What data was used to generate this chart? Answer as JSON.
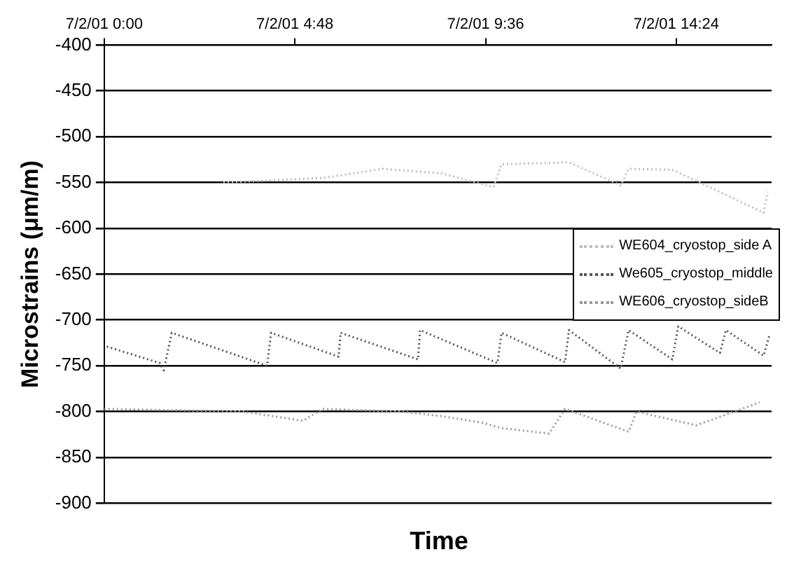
{
  "chart_data": {
    "type": "line",
    "xlabel": "Time",
    "ylabel": "Microstrains (μm/m)",
    "xlim": [
      "--07-02T00:00",
      "--07-02T16:48"
    ],
    "xticks": [
      {
        "value": "--07-02T00:00",
        "label": "7/2/01 0:00"
      },
      {
        "value": "--07-02T04:48",
        "label": "7/2/01 4:48"
      },
      {
        "value": "--07-02T09:36",
        "label": "7/2/01 9:36"
      },
      {
        "value": "--07-02T14:24",
        "label": "7/2/01 14:24"
      }
    ],
    "ylim": [
      -900,
      -400
    ],
    "yticks": [
      -900,
      -850,
      -800,
      -750,
      -700,
      -650,
      -600,
      -550,
      -500,
      -450,
      -400
    ],
    "grid": "y",
    "legend": "right",
    "marker": "none",
    "line_style": "dotted",
    "series": [
      {
        "name": "WE604_cryostop_side A",
        "color": "#bdbdbd",
        "x": [
          "--07-02T03:00",
          "--07-02T05:30",
          "--07-02T07:00",
          "--07-02T08:30",
          "--07-02T09:48",
          "--07-02T10:00",
          "--07-02T11:42",
          "--07-02T13:00",
          "--07-02T13:12",
          "--07-02T14:18",
          "--07-02T15:00",
          "--07-02T16:36",
          "--07-02T16:42"
        ],
        "values": [
          -550,
          -545,
          -535,
          -540,
          -555,
          -530,
          -528,
          -553,
          -535,
          -536,
          -550,
          -583,
          -560
        ]
      },
      {
        "name": "We605_cryostop_middle",
        "color": "#555555",
        "x": [
          "--07-02T00:04",
          "--07-02T01:24",
          "--07-02T01:30",
          "--07-02T01:42",
          "--07-02T04:06",
          "--07-02T04:12",
          "--07-02T05:54",
          "--07-02T05:57",
          "--07-02T07:54",
          "--07-02T07:57",
          "--07-02T09:54",
          "--07-02T10:00",
          "--07-02T11:36",
          "--07-02T11:42",
          "--07-02T13:00",
          "--07-02T13:12",
          "--07-02T14:18",
          "--07-02T14:27",
          "--07-02T15:30",
          "--07-02T15:39",
          "--07-02T16:36",
          "--07-02T16:45"
        ],
        "values": [
          -729,
          -747,
          -755,
          -714,
          -750,
          -714,
          -740,
          -714,
          -743,
          -711,
          -747,
          -714,
          -746,
          -711,
          -753,
          -711,
          -743,
          -707,
          -736,
          -711,
          -739,
          -716
        ]
      },
      {
        "name": "WE606_cryostop_sideB",
        "color": "#999999",
        "x": [
          "--07-02T00:00",
          "--07-02T03:30",
          "--07-02T05:00",
          "--07-02T05:30",
          "--07-02T07:30",
          "--07-02T08:30",
          "--07-02T09:30",
          "--07-02T10:00",
          "--07-02T11:12",
          "--07-02T11:36",
          "--07-02T13:12",
          "--07-02T13:24",
          "--07-02T14:54",
          "--07-02T16:30"
        ],
        "values": [
          -797,
          -800,
          -810,
          -797,
          -800,
          -805,
          -812,
          -818,
          -824,
          -797,
          -822,
          -800,
          -815,
          -790
        ]
      }
    ]
  }
}
